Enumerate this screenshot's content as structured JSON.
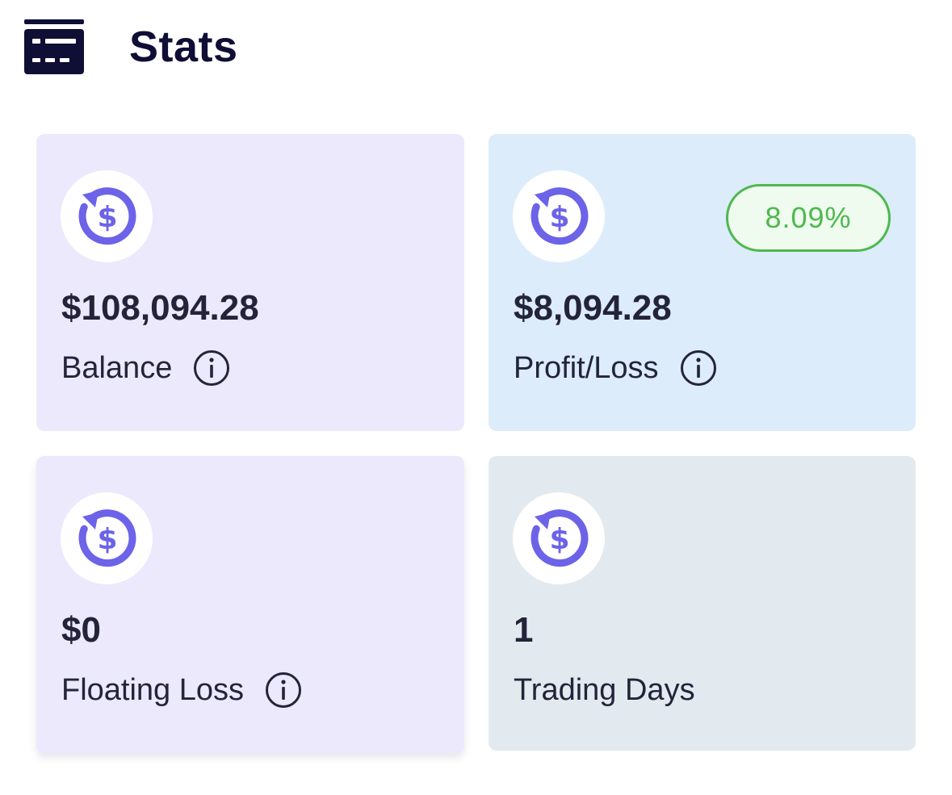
{
  "header": {
    "title": "Stats",
    "icon": "id-card-icon"
  },
  "colors": {
    "accent": "#6c63e8",
    "header_icon": "#0f0e35",
    "badge_green": "#4fb84f",
    "card_purple": "#ebe9fb",
    "card_blue": "#dcecfa",
    "card_gray": "#e3eaef"
  },
  "cards": [
    {
      "icon": "dollar-refresh-icon",
      "value": "$108,094.28",
      "label": "Balance",
      "info_icon": "info-icon",
      "background": "#ebe9fb"
    },
    {
      "icon": "dollar-refresh-icon",
      "value": "$8,094.28",
      "label": "Profit/Loss",
      "badge": "8.09%",
      "info_icon": "info-icon",
      "background": "#dcecfa"
    },
    {
      "icon": "dollar-refresh-icon",
      "value": "$0",
      "label": "Floating Loss",
      "info_icon": "info-icon",
      "background": "#ebe9fb"
    },
    {
      "icon": "dollar-refresh-icon",
      "value": "1",
      "label": "Trading Days",
      "background": "#e3eaef"
    }
  ]
}
